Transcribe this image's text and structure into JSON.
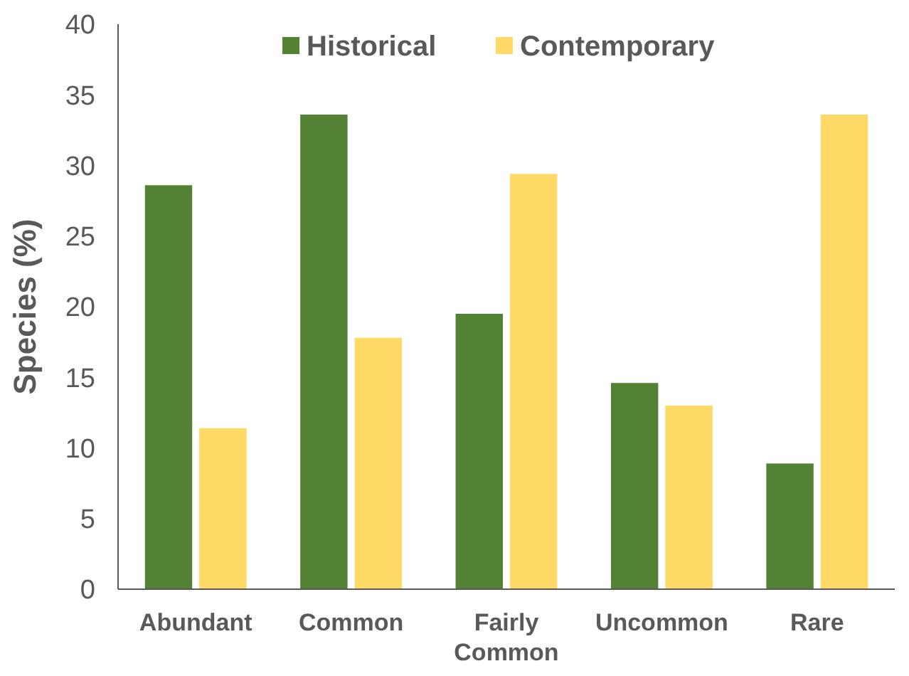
{
  "chart_data": {
    "type": "bar",
    "ylabel": "Species (%)",
    "categories": [
      "Abundant",
      "Common",
      "Fairly Common",
      "Uncommon",
      "Rare"
    ],
    "series": [
      {
        "name": "Historical",
        "color": "#548235",
        "values": [
          28.6,
          33.6,
          19.5,
          14.6,
          8.9
        ]
      },
      {
        "name": "Contemporary",
        "color": "#ffd966",
        "values": [
          11.4,
          17.8,
          29.4,
          13.0,
          33.6
        ]
      }
    ],
    "ylim": [
      0,
      40
    ],
    "yticks": [
      0,
      5,
      10,
      15,
      20,
      25,
      30,
      35,
      40
    ],
    "grid": false,
    "legend": "top"
  }
}
